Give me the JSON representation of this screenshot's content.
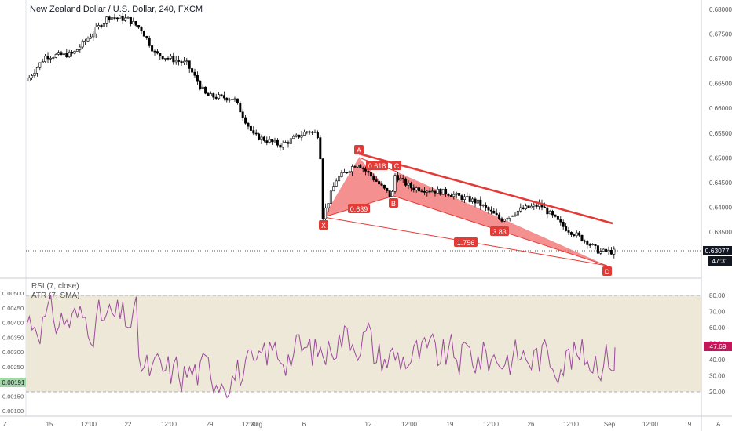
{
  "title": "New Zealand Dollar / U.S. Dollar, 240, FXCM",
  "price_axis": {
    "ticks": [
      "0.68000",
      "0.67500",
      "0.67000",
      "0.66500",
      "0.66000",
      "0.65500",
      "0.65000",
      "0.64500",
      "0.64000",
      "0.63500"
    ],
    "current_price": "0.63077",
    "countdown": "47:31"
  },
  "indicator": {
    "label1": "RSI (7, close)",
    "label2": "ATR (7, SMA)",
    "left_ticks": [
      "0.00500",
      "0.00450",
      "0.00400",
      "0.00350",
      "0.00300",
      "0.00250",
      "0.00200",
      "0.00150",
      "0.00100"
    ],
    "left_highlight": "0.00191",
    "right_ticks": [
      "80.00",
      "70.00",
      "60.00",
      "50.00",
      "40.00",
      "30.00",
      "20.00"
    ],
    "right_highlight": "47.69"
  },
  "time_axis": {
    "left_corner": "Z",
    "right_corner": "A",
    "labels": [
      "15",
      "12:00",
      "22",
      "12:00",
      "29",
      "12:00",
      "Aug",
      "6",
      "12",
      "12:00",
      "19",
      "12:00",
      "26",
      "12:00",
      "Sep",
      "12:00",
      "9"
    ]
  },
  "pattern": {
    "points": [
      "X",
      "A",
      "B",
      "C",
      "D"
    ],
    "ratios": [
      "0.618",
      "0.639",
      "3.83",
      "1.756"
    ]
  },
  "chart_data": {
    "type": "candlestick",
    "title": "New Zealand Dollar / U.S. Dollar, 240, FXCM",
    "y_range": [
      0.6272,
      0.6825
    ],
    "approx_close_path": [
      {
        "x": "mid Jul",
        "y": 0.6655
      },
      {
        "x": "~19 Jul",
        "y": 0.6785
      },
      {
        "x": "~22 Jul",
        "y": 0.6765
      },
      {
        "x": "~25 Jul",
        "y": 0.67
      },
      {
        "x": "~29 Jul",
        "y": 0.663
      },
      {
        "x": "1 Aug",
        "y": 0.655
      },
      {
        "x": "6 Aug (X)",
        "y": 0.6378
      },
      {
        "x": "9 Aug (A)",
        "y": 0.6492
      },
      {
        "x": "14 Aug (B)",
        "y": 0.6417
      },
      {
        "x": "15 Aug (C)",
        "y": 0.647
      },
      {
        "x": "Sep (D)",
        "y": 0.6308
      }
    ],
    "current_price": 0.63077,
    "rsi": {
      "name": "RSI (7, close)",
      "last": 47.69,
      "range": [
        10,
        85
      ],
      "bands": [
        20,
        80
      ]
    },
    "atr": {
      "name": "ATR (7, SMA)",
      "last": 0.00191
    }
  },
  "colors": {
    "pattern_fill": "#f06b6b",
    "pattern_line": "#e53935",
    "trendline": "#e53935",
    "rsi_line": "#9c4a9c",
    "rsi_band": "#ede8d8",
    "candle_up": "#ffffff",
    "candle_down": "#000000",
    "atr_badge": "#a5d6a7",
    "rsi_badge": "#c2185b"
  }
}
